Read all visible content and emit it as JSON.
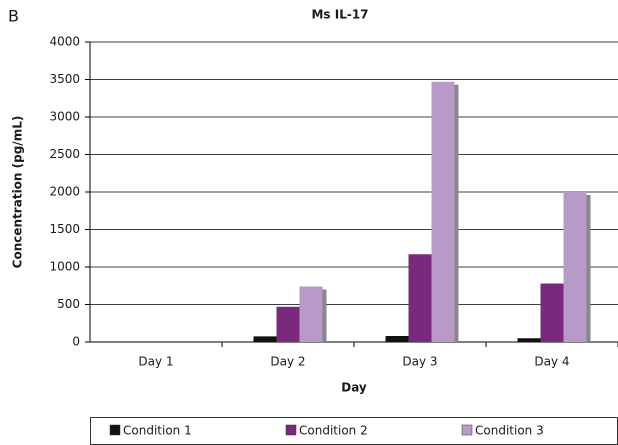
{
  "chart_data": {
    "type": "bar",
    "panel_label": "B",
    "title": "Ms IL-17",
    "x_label": "Day",
    "y_label": "Concentration (pg/mL)",
    "categories": [
      "Day 1",
      "Day 2",
      "Day 3",
      "Day 4"
    ],
    "series": [
      {
        "name": "Condition 1",
        "color": "#111111",
        "values": [
          0,
          75,
          80,
          50
        ]
      },
      {
        "name": "Condition 2",
        "color": "#7a2a7e",
        "values": [
          0,
          470,
          1170,
          780
        ]
      },
      {
        "name": "Condition 3",
        "color": "#b89ac8",
        "values": [
          0,
          740,
          3470,
          2000
        ]
      }
    ],
    "ylim": [
      0,
      4000
    ],
    "yticks": [
      0,
      500,
      1000,
      1500,
      2000,
      2500,
      3000,
      3500,
      4000
    ],
    "grid": true,
    "legend": "bottom"
  }
}
